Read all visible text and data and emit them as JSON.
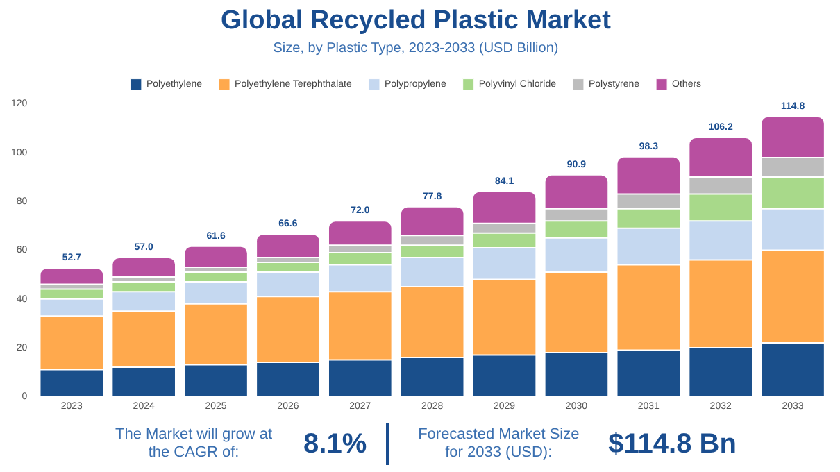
{
  "chart_data": {
    "type": "bar",
    "title": "Global Recycled Plastic Market",
    "subtitle": "Size, by Plastic Type, 2023-2033 (USD Billion)",
    "categories": [
      "2023",
      "2024",
      "2025",
      "2026",
      "2027",
      "2028",
      "2029",
      "2030",
      "2031",
      "2032",
      "2033"
    ],
    "series": [
      {
        "name": "Polyethylene",
        "color": "#1a4f8b",
        "values": [
          11,
          12,
          13,
          14,
          15,
          16,
          17,
          18,
          19,
          20,
          22
        ]
      },
      {
        "name": "Polyethylene Terephthalate",
        "color": "#ffa94d",
        "values": [
          22,
          23,
          25,
          27,
          28,
          29,
          31,
          33,
          35,
          36,
          38
        ]
      },
      {
        "name": "Polypropylene",
        "color": "#c5d8f0",
        "values": [
          7,
          8,
          9,
          10,
          11,
          12,
          13,
          14,
          15,
          16,
          17
        ]
      },
      {
        "name": "Polyvinyl Chloride",
        "color": "#a8d98a",
        "values": [
          4,
          4,
          4,
          4,
          5,
          5,
          6,
          7,
          8,
          11,
          13
        ]
      },
      {
        "name": "Polystyrene",
        "color": "#bdbdbd",
        "values": [
          2,
          2,
          2,
          2,
          3,
          4,
          4,
          5,
          6,
          7,
          8
        ]
      },
      {
        "name": "Others",
        "color": "#b84fa0",
        "values": [
          6.7,
          8,
          8.6,
          9.6,
          10,
          11.8,
          13.1,
          13.9,
          15.3,
          16.2,
          16.8
        ]
      }
    ],
    "stacked": true,
    "totals": [
      "52.7",
      "57.0",
      "61.6",
      "66.6",
      "72.0",
      "77.8",
      "84.1",
      "90.9",
      "98.3",
      "106.2",
      "114.8"
    ],
    "ylim": [
      0,
      120
    ],
    "yticks": [
      0,
      20,
      40,
      60,
      80,
      100,
      120
    ],
    "grid": false,
    "legend": "top",
    "annotations": [
      "The Market will grow at the CAGR of:",
      "8.1%",
      "Forecasted Market Size for 2033 (USD):",
      "$114.8 Bn"
    ]
  }
}
